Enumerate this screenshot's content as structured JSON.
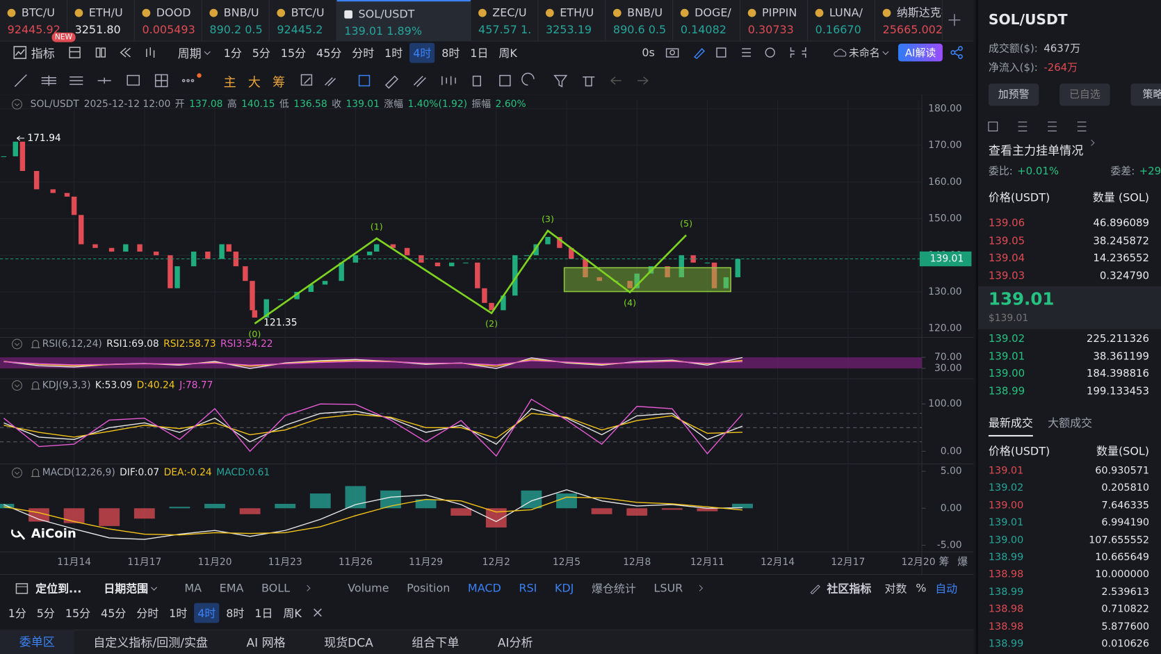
{
  "tabs": [
    {
      "name": "BTC/U",
      "price": "92445.92",
      "color": "#e04b54"
    },
    {
      "name": "ETH/U",
      "price": "3251.80",
      "color": "#e6e8ec"
    },
    {
      "name": "DOOD",
      "price": "0.005493",
      "color": "#e04b54"
    },
    {
      "name": "BNB/U",
      "price": "890.2 0.5",
      "color": "#26a69a"
    },
    {
      "name": "BTC/U",
      "price": "92445.2",
      "color": "#26a69a"
    },
    {
      "name": "SOL/USDT",
      "price": "139.01 1.89%",
      "color": "#26a69a",
      "active": true
    },
    {
      "name": "ZEC/U",
      "price": "457.57 1.",
      "color": "#26a69a"
    },
    {
      "name": "ETH/U",
      "price": "3253.19",
      "color": "#26a69a"
    },
    {
      "name": "BNB/U",
      "price": "890.6 0.5",
      "color": "#26a69a"
    },
    {
      "name": "DOGE/",
      "price": "0.14082",
      "color": "#26a69a"
    },
    {
      "name": "PIPPIN",
      "price": "0.30733",
      "color": "#e04b54"
    },
    {
      "name": "LUNA/",
      "price": "0.16670",
      "color": "#26a69a"
    },
    {
      "name": "纳斯达克指",
      "price": "25665.002",
      "color": "#e04b54"
    }
  ],
  "new_badge": "NEW",
  "toolbar": {
    "indicator": "指标",
    "period": "周期",
    "intervals": [
      {
        "label": "1分"
      },
      {
        "label": "5分"
      },
      {
        "label": "15分"
      },
      {
        "label": "45分"
      },
      {
        "label": "分时"
      },
      {
        "label": "1时"
      },
      {
        "label": "4时",
        "active": true
      },
      {
        "label": "8时"
      },
      {
        "label": "1日"
      },
      {
        "label": "周K"
      }
    ],
    "timer": "0s",
    "layout_name": "未命名",
    "ai": "AI解读",
    "tools": [
      "主",
      "大",
      "筹"
    ]
  },
  "chart_data": [
    {
      "type": "candlestick",
      "symbol": "SOL/USDT",
      "time": "2025-12-12 12:00",
      "info": [
        {
          "label": "开",
          "value": "137.08"
        },
        {
          "label": "高",
          "value": "140.15"
        },
        {
          "label": "低",
          "value": "136.58"
        },
        {
          "label": "收",
          "value": "139.01"
        },
        {
          "label": "涨幅",
          "value": "1.40%(1.92)"
        },
        {
          "label": "振幅",
          "value": "2.60%"
        }
      ],
      "x": [
        -3.0,
        -2.5,
        -2.2,
        -1.6,
        -0.9,
        -0.3,
        0,
        0.3,
        0.9,
        1.6,
        2.2,
        2.8,
        3.5,
        4.1,
        4.4,
        5.1,
        5.7,
        6.3,
        6.6,
        6.9,
        7.3,
        7.6,
        7.7,
        8.2,
        8.8,
        9.5,
        10.1,
        10.7,
        11.4,
        12.0,
        12.6,
        12.9,
        13.6,
        14.2,
        14.8,
        15.5,
        16.1,
        16.7,
        17.2,
        17.5,
        17.8,
        18.3,
        18.8,
        19.3,
        19.7,
        20.2,
        20.7,
        21.2,
        21.8,
        22.4,
        23.1,
        23.7,
        24.0,
        24.6,
        25.3,
        25.9,
        26.4,
        27.0,
        27.3,
        27.8,
        28.3
      ],
      "values": [
        167,
        171,
        163,
        158,
        157,
        156,
        151,
        143,
        142,
        141,
        143,
        141,
        140,
        131,
        137,
        141,
        139,
        143,
        141,
        137,
        133,
        125,
        123,
        128,
        128,
        130,
        132,
        133,
        138,
        140,
        141,
        143,
        142,
        140,
        138,
        137,
        138,
        138,
        131,
        127,
        125,
        129,
        140,
        140,
        143,
        145,
        142,
        139,
        134,
        133,
        133,
        131,
        135,
        137,
        134,
        140,
        138,
        138,
        131,
        134,
        139.01
      ],
      "up_color": "#1fad7e",
      "down_color": "#e04b54",
      "xlim": [
        -3.16,
        36.15
      ],
      "xticks": [
        {
          "value": 0,
          "label": "11月14"
        },
        {
          "value": 3,
          "label": "11月17"
        },
        {
          "value": 6,
          "label": "11月20"
        },
        {
          "value": 9,
          "label": "11月23"
        },
        {
          "value": 12,
          "label": "11月26"
        },
        {
          "value": 15,
          "label": "11月29"
        },
        {
          "value": 18,
          "label": "12月2"
        },
        {
          "value": 21,
          "label": "12月5"
        },
        {
          "value": 24,
          "label": "12月8"
        },
        {
          "value": 27,
          "label": "12月11"
        },
        {
          "value": 30,
          "label": "12月14"
        },
        {
          "value": 33,
          "label": "12月17"
        },
        {
          "value": 36,
          "label": "12月20"
        }
      ],
      "ylim": [
        117.8,
        182.4
      ],
      "yticks": [
        {
          "value": 120,
          "label": "120.00"
        },
        {
          "value": 130,
          "label": "130.00"
        },
        {
          "value": 140,
          "label": "140.00"
        },
        {
          "value": 150,
          "label": "150.00"
        },
        {
          "value": 160,
          "label": "160.00"
        },
        {
          "value": 170,
          "label": "170.00"
        },
        {
          "value": 180,
          "label": "180.00"
        }
      ],
      "grid": true,
      "last_price": 139.01,
      "last_color": "#1a9e78",
      "high_marker": {
        "x": -2.5,
        "value": 171.94
      },
      "low_marker": {
        "x": 7.7,
        "value": 121.35
      },
      "waves": [
        {
          "label": "(0)",
          "x": 7.7,
          "value": 121.35
        },
        {
          "label": "(1)",
          "x": 12.9,
          "value": 144.6
        },
        {
          "label": "(2)",
          "x": 17.8,
          "value": 124.2
        },
        {
          "label": "(3)",
          "x": 20.2,
          "value": 146.7
        },
        {
          "label": "(4)",
          "x": 23.7,
          "value": 129.9
        },
        {
          "label": "(5)",
          "x": 26.1,
          "value": 145.5
        }
      ],
      "wave_color": "#7ed321",
      "box": {
        "x": [
          20.9,
          28.0
        ],
        "y": [
          130.1,
          136.6
        ]
      },
      "box_color": "#8cc63f",
      "axis_buttons": [
        "筹",
        "爆"
      ],
      "watermark": "AiCoin"
    },
    {
      "type": "line",
      "title": "RSI(6,12,24)",
      "x": [
        -3,
        -1.5,
        0,
        1.5,
        3,
        4.5,
        6,
        7.5,
        9,
        10.5,
        12,
        13.5,
        15,
        16.5,
        18,
        19.5,
        21,
        22.5,
        24,
        25.5,
        27,
        28.5
      ],
      "xlim": [
        -3.16,
        36.15
      ],
      "series": [
        {
          "name": "RSI1:69.08",
          "color": "#e8e8e8",
          "values": [
            55,
            40,
            35,
            45,
            48,
            42,
            55,
            30,
            50,
            58,
            62,
            55,
            45,
            50,
            30,
            68,
            50,
            42,
            55,
            60,
            42,
            69.08
          ]
        },
        {
          "name": "RSI2:58.73",
          "color": "#f5c518",
          "values": [
            55,
            45,
            40,
            44,
            47,
            45,
            52,
            38,
            48,
            55,
            58,
            55,
            48,
            49,
            38,
            62,
            52,
            45,
            52,
            57,
            47,
            58.73
          ]
        },
        {
          "name": "RSI3:54.22",
          "color": "#e85ad6",
          "values": [
            54,
            47,
            43,
            45,
            47,
            46,
            50,
            42,
            47,
            52,
            55,
            54,
            49,
            49,
            43,
            58,
            53,
            47,
            51,
            55,
            49,
            54.22
          ]
        }
      ],
      "ylim": [
        0,
        100
      ],
      "yticks": [
        {
          "value": 30,
          "label": "30.00"
        },
        {
          "value": 70,
          "label": "70.00"
        }
      ],
      "band": [
        30,
        70
      ],
      "band_color": "#6a1f6e"
    },
    {
      "type": "line",
      "title": "KDJ(9,3,3)",
      "x": [
        -3,
        -1.5,
        0,
        1.5,
        3,
        4.5,
        6,
        7.5,
        9,
        10.5,
        12,
        13.5,
        15,
        16.5,
        18,
        19.5,
        21,
        22.5,
        24,
        25.5,
        27,
        28.5
      ],
      "xlim": [
        -3.16,
        36.15
      ],
      "series": [
        {
          "name": "K:53.09",
          "color": "#e8e8e8",
          "values": [
            60,
            30,
            25,
            50,
            60,
            40,
            70,
            20,
            55,
            80,
            85,
            70,
            40,
            55,
            15,
            90,
            70,
            35,
            75,
            80,
            25,
            53.09
          ]
        },
        {
          "name": "D:40.24",
          "color": "#f5c518",
          "values": [
            55,
            40,
            30,
            42,
            55,
            48,
            60,
            35,
            45,
            70,
            78,
            72,
            50,
            50,
            28,
            80,
            72,
            45,
            65,
            75,
            38,
            40.24
          ]
        },
        {
          "name": "J:78.77",
          "color": "#e85ad6",
          "values": [
            70,
            10,
            15,
            66,
            70,
            25,
            90,
            0,
            75,
            100,
            99,
            66,
            20,
            65,
            -10,
            110,
            66,
            15,
            95,
            90,
            -5,
            78.77
          ]
        }
      ],
      "ylim": [
        -25,
        125
      ],
      "yticks": [
        {
          "value": 0,
          "label": "0.00"
        },
        {
          "value": 100,
          "label": "100.00"
        }
      ],
      "levels": [
        20,
        50,
        80
      ]
    },
    {
      "type": "line",
      "title": "MACD(12,26,9)",
      "x": [
        -3,
        -1.5,
        0,
        1.5,
        3,
        4.5,
        6,
        7.5,
        9,
        10.5,
        12,
        13.5,
        15,
        16.5,
        18,
        19.5,
        21,
        22.5,
        24,
        25.5,
        27,
        28.5
      ],
      "xlim": [
        -3.16,
        36.15
      ],
      "series": [
        {
          "name": "DIF:0.07",
          "color": "#e8e8e8",
          "values": [
            0.5,
            -1.5,
            -2.8,
            -4.0,
            -4.2,
            -3.5,
            -3.0,
            -3.8,
            -3.0,
            -1.5,
            0.5,
            1.5,
            1.8,
            0.5,
            -1.8,
            1.0,
            2.5,
            1.0,
            0.3,
            0.5,
            0.0,
            0.07
          ]
        },
        {
          "name": "DEA:-0.24",
          "color": "#f5c518",
          "values": [
            0.2,
            -0.6,
            -1.8,
            -2.8,
            -3.5,
            -3.6,
            -3.3,
            -3.4,
            -3.3,
            -2.5,
            -1.0,
            0.3,
            1.2,
            1.0,
            -0.5,
            -0.2,
            1.5,
            1.4,
            0.8,
            0.6,
            0.2,
            -0.24
          ]
        }
      ],
      "histogram": {
        "name": "MACD:0.61",
        "color": "#26a69a",
        "up_color": "#26a69a",
        "down_color": "#e04b54",
        "values": [
          0.6,
          -1.8,
          -2.0,
          -2.4,
          -1.4,
          0.2,
          0.6,
          -0.8,
          0.6,
          2.0,
          3.0,
          2.4,
          1.2,
          -1.0,
          -2.6,
          2.4,
          2.0,
          -0.8,
          -1.0,
          -0.2,
          -0.4,
          0.61
        ]
      },
      "ylim": [
        -5.8,
        5.7
      ],
      "yticks": [
        {
          "value": -5,
          "label": "-5.00"
        },
        {
          "value": 0,
          "label": "0.00"
        },
        {
          "value": 5,
          "label": "5.00"
        }
      ]
    }
  ],
  "bottom": {
    "locate": "定位到...",
    "date_range": "日期范围",
    "overlays": [
      "MA",
      "EMA",
      "BOLL"
    ],
    "indicators": [
      {
        "label": "Volume"
      },
      {
        "label": "Position"
      },
      {
        "label": "MACD",
        "active": true
      },
      {
        "label": "RSI",
        "active": true
      },
      {
        "label": "KDJ",
        "active": true
      },
      {
        "label": "爆仓统计"
      },
      {
        "label": "LSUR"
      }
    ],
    "community": "社区指标",
    "log": "对数",
    "percent": "%",
    "auto": "自动",
    "tabs": [
      {
        "label": "委单区",
        "active": true
      },
      {
        "label": "自定义指标/回测/实盘"
      },
      {
        "label": "AI 网格"
      },
      {
        "label": "现货DCA"
      },
      {
        "label": "组合下单"
      },
      {
        "label": "AI分析"
      }
    ]
  },
  "right_panel": {
    "symbol": "SOL/USDT",
    "stats": [
      {
        "label": "成交额($):",
        "value": "4637万",
        "color": "#c9ccd3"
      },
      {
        "label": "净流入($):",
        "value": "-264万",
        "color": "#e04b54"
      }
    ],
    "buttons": [
      "加预警",
      "已自选",
      "策略"
    ],
    "depth_link": "查看主力挂单情况",
    "ratio": {
      "label": "委比:",
      "value": "+0.01%"
    },
    "diff": {
      "label": "委差:",
      "value": "+29"
    },
    "book_header": [
      "价格(USDT)",
      "数量 (SOL)"
    ],
    "asks": [
      [
        "139.06",
        "46.896089"
      ],
      [
        "139.05",
        "38.245872"
      ],
      [
        "139.04",
        "14.236552"
      ],
      [
        "139.03",
        "0.324790"
      ]
    ],
    "mid": "139.01",
    "mid_usd": "$139.01",
    "bids": [
      [
        "139.02",
        "225.211326"
      ],
      [
        "139.01",
        "38.361199"
      ],
      [
        "139.00",
        "184.398816"
      ],
      [
        "138.99",
        "199.133453"
      ]
    ],
    "trade_tabs": [
      "最新成交",
      "大额成交"
    ],
    "trade_header": [
      "价格(USDT)",
      "数量(SOL)"
    ],
    "trades": [
      {
        "price": "139.01",
        "qty": "60.930571",
        "color": "#e04b54"
      },
      {
        "price": "139.02",
        "qty": "0.205810",
        "color": "#26a69a"
      },
      {
        "price": "139.00",
        "qty": "7.646335",
        "color": "#e04b54"
      },
      {
        "price": "139.01",
        "qty": "6.994190",
        "color": "#26a69a"
      },
      {
        "price": "139.00",
        "qty": "107.655552",
        "color": "#26a69a"
      },
      {
        "price": "138.99",
        "qty": "10.665649",
        "color": "#26a69a"
      },
      {
        "price": "138.98",
        "qty": "10.000000",
        "color": "#e04b54"
      },
      {
        "price": "138.99",
        "qty": "2.539613",
        "color": "#26a69a"
      },
      {
        "price": "138.98",
        "qty": "0.710822",
        "color": "#e04b54"
      },
      {
        "price": "138.98",
        "qty": "5.877600",
        "color": "#e04b54"
      },
      {
        "price": "138.99",
        "qty": "0.010626",
        "color": "#26a69a"
      }
    ]
  }
}
